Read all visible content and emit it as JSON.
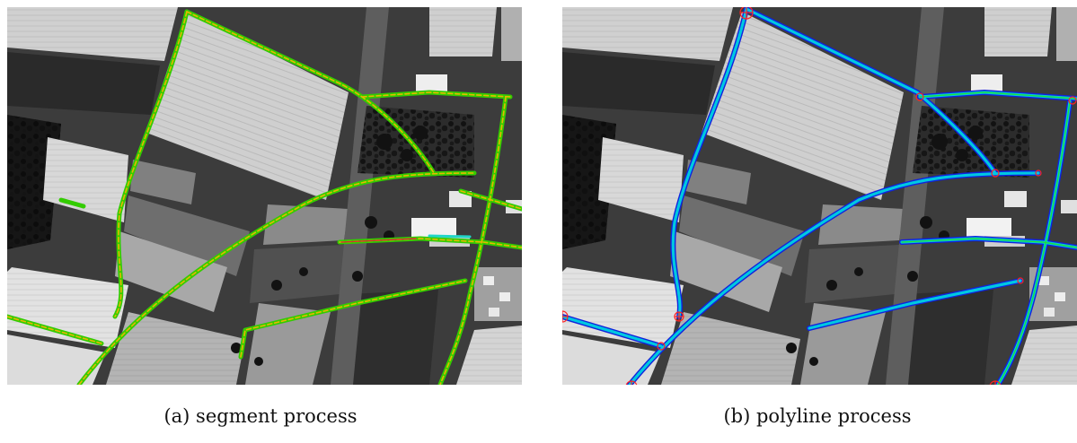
{
  "figure": {
    "panels": [
      {
        "id": "a",
        "caption": "(a) segment process"
      },
      {
        "id": "b",
        "caption": "(b) polyline process"
      }
    ]
  },
  "colors": {
    "segment_outer": "#33cc00",
    "segment_inner": "#e6b800",
    "polyline_outer": "#1122dd",
    "polyline_middle": "#00c8e0",
    "polyline_inner": "#22dd33",
    "node_marker": "#ff2222"
  }
}
